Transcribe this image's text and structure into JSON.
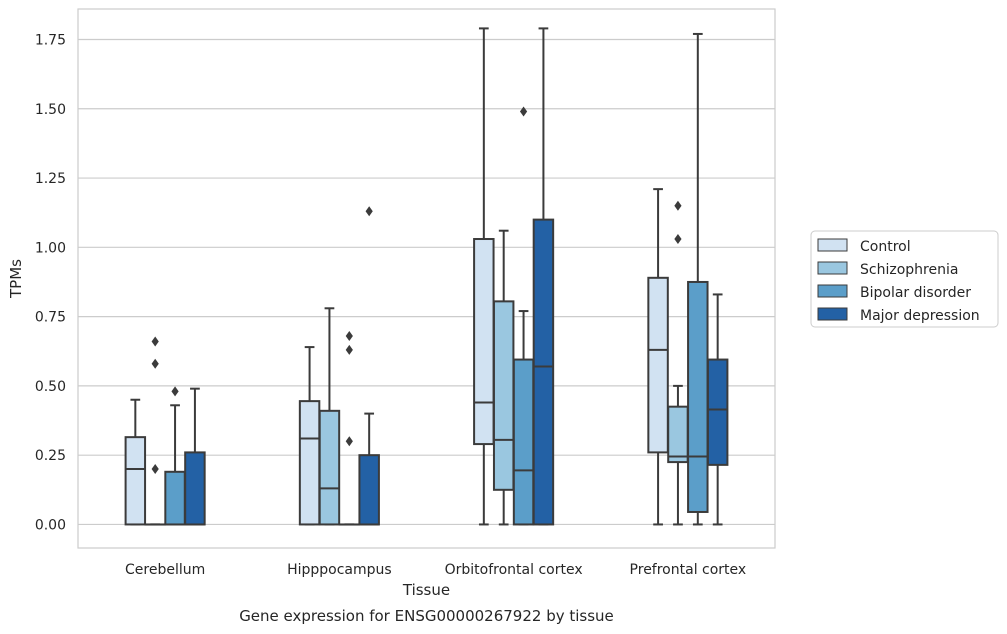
{
  "chart_data": {
    "type": "box",
    "title": "Gene expression for ENSG00000267922 by tissue",
    "xlabel": "Tissue",
    "ylabel": "TPMs",
    "ylim": [
      -0.085,
      1.86
    ],
    "yticks": [
      "0.00",
      "0.25",
      "0.50",
      "0.75",
      "1.00",
      "1.25",
      "1.50",
      "1.75"
    ],
    "grid": "horizontal",
    "legend_position": "right",
    "categories": [
      "Cerebellum",
      "Hipppocampus",
      "Orbitofrontal cortex",
      "Prefrontal cortex"
    ],
    "series": [
      {
        "name": "Control",
        "color": "#d1e2f2",
        "boxes": [
          {
            "whislo": 0.0,
            "q1": 0.0,
            "med": 0.2,
            "q3": 0.315,
            "whishi": 0.45,
            "fliers": []
          },
          {
            "whislo": 0.0,
            "q1": 0.0,
            "med": 0.31,
            "q3": 0.445,
            "whishi": 0.64,
            "fliers": []
          },
          {
            "whislo": 0.0,
            "q1": 0.29,
            "med": 0.44,
            "q3": 1.03,
            "whishi": 1.79,
            "fliers": []
          },
          {
            "whislo": 0.0,
            "q1": 0.26,
            "med": 0.63,
            "q3": 0.89,
            "whishi": 1.21,
            "fliers": []
          }
        ]
      },
      {
        "name": "Schizophrenia",
        "color": "#9ac7e0",
        "boxes": [
          {
            "whislo": 0.0,
            "q1": 0.0,
            "med": 0.0,
            "q3": 0.0,
            "whishi": 0.0,
            "fliers": [
              0.2,
              0.58,
              0.66
            ]
          },
          {
            "whislo": 0.0,
            "q1": 0.0,
            "med": 0.13,
            "q3": 0.41,
            "whishi": 0.78,
            "fliers": []
          },
          {
            "whislo": 0.0,
            "q1": 0.125,
            "med": 0.305,
            "q3": 0.805,
            "whishi": 1.06,
            "fliers": []
          },
          {
            "whislo": 0.0,
            "q1": 0.225,
            "med": 0.245,
            "q3": 0.425,
            "whishi": 0.5,
            "fliers": [
              1.03,
              1.15
            ]
          }
        ]
      },
      {
        "name": "Bipolar disorder",
        "color": "#5b9ec9",
        "boxes": [
          {
            "whislo": 0.0,
            "q1": 0.0,
            "med": 0.0,
            "q3": 0.19,
            "whishi": 0.43,
            "fliers": [
              0.48
            ]
          },
          {
            "whislo": 0.0,
            "q1": 0.0,
            "med": 0.0,
            "q3": 0.0,
            "whishi": 0.0,
            "fliers": [
              0.3,
              0.63,
              0.68
            ]
          },
          {
            "whislo": 0.0,
            "q1": 0.0,
            "med": 0.195,
            "q3": 0.595,
            "whishi": 0.77,
            "fliers": [
              1.49
            ]
          },
          {
            "whislo": 0.0,
            "q1": 0.045,
            "med": 0.245,
            "q3": 0.875,
            "whishi": 1.77,
            "fliers": []
          }
        ]
      },
      {
        "name": "Major depression",
        "color": "#2361a5",
        "boxes": [
          {
            "whislo": 0.0,
            "q1": 0.0,
            "med": 0.0,
            "q3": 0.26,
            "whishi": 0.49,
            "fliers": []
          },
          {
            "whislo": 0.0,
            "q1": 0.0,
            "med": 0.0,
            "q3": 0.25,
            "whishi": 0.4,
            "fliers": [
              1.13
            ]
          },
          {
            "whislo": 0.0,
            "q1": 0.0,
            "med": 0.57,
            "q3": 1.1,
            "whishi": 1.79,
            "fliers": []
          },
          {
            "whislo": 0.0,
            "q1": 0.215,
            "med": 0.415,
            "q3": 0.595,
            "whishi": 0.83,
            "fliers": []
          }
        ]
      }
    ]
  }
}
